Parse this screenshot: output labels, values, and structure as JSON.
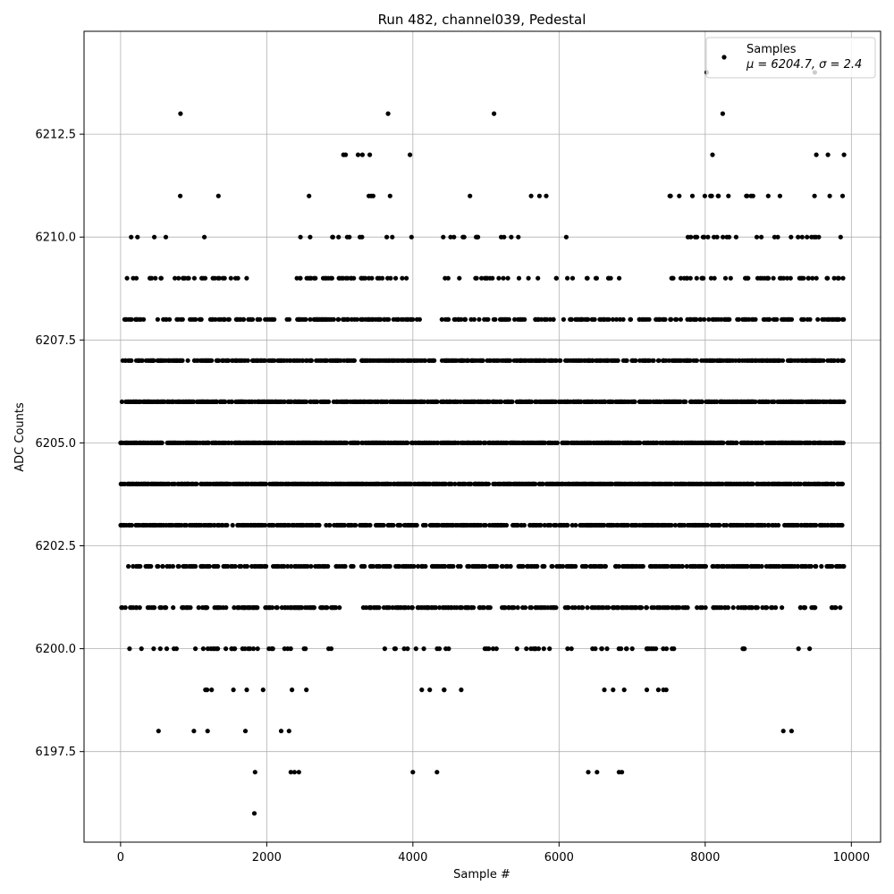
{
  "chart_data": {
    "type": "scatter",
    "title": "Run 482, channel039, Pedestal",
    "xlabel": "Sample #",
    "ylabel": "ADC Counts",
    "xlim": [
      -500,
      10400
    ],
    "ylim": [
      6195.3,
      6215.0
    ],
    "grid": true,
    "legend_position": "top-right",
    "marker_color": "#000000",
    "x_ticks": [
      {
        "value": 0,
        "label": "0"
      },
      {
        "value": 2000,
        "label": "2000"
      },
      {
        "value": 4000,
        "label": "4000"
      },
      {
        "value": 6000,
        "label": "6000"
      },
      {
        "value": 8000,
        "label": "8000"
      },
      {
        "value": 10000,
        "label": "10000"
      }
    ],
    "y_ticks": [
      {
        "value": 6197.5,
        "label": "6197.5"
      },
      {
        "value": 6200.0,
        "label": "6200.0"
      },
      {
        "value": 6202.5,
        "label": "6202.5"
      },
      {
        "value": 6205.0,
        "label": "6205.0"
      },
      {
        "value": 6207.5,
        "label": "6207.5"
      },
      {
        "value": 6210.0,
        "label": "6210.0"
      },
      {
        "value": 6212.5,
        "label": "6212.5"
      }
    ],
    "series": [
      {
        "name": "Samples",
        "stats_label": "μ = 6204.7, σ = 2.4",
        "sample_count": 10000,
        "x_range": [
          0,
          9900
        ],
        "level_profiles": [
          {
            "y": 6204,
            "segments": [
              [
                0,
                9900,
                0.55
              ]
            ]
          },
          {
            "y": 6205,
            "segments": [
              [
                0,
                9900,
                0.55
              ]
            ]
          },
          {
            "y": 6206,
            "segments": [
              [
                0,
                9900,
                0.5
              ]
            ]
          },
          {
            "y": 6203,
            "segments": [
              [
                0,
                9900,
                0.42
              ]
            ]
          },
          {
            "y": 6207,
            "segments": [
              [
                0,
                4300,
                0.35
              ],
              [
                4300,
                4400,
                0.05
              ],
              [
                4400,
                9900,
                0.4
              ]
            ]
          },
          {
            "y": 6202,
            "segments": [
              [
                100,
                9900,
                0.32
              ]
            ]
          },
          {
            "y": 6208,
            "segments": [
              [
                0,
                2000,
                0.18
              ],
              [
                2000,
                2400,
                0.12
              ],
              [
                2400,
                4100,
                0.3
              ],
              [
                4400,
                9900,
                0.25
              ]
            ]
          },
          {
            "y": 6201,
            "segments": [
              [
                0,
                3000,
                0.28
              ],
              [
                3300,
                9900,
                0.22
              ]
            ]
          },
          {
            "y": 6209,
            "segments": [
              [
                0,
                1800,
                0.1
              ],
              [
                2400,
                4000,
                0.2
              ],
              [
                4400,
                7000,
                0.08
              ],
              [
                7400,
                9900,
                0.2
              ]
            ]
          },
          {
            "y": 6200,
            "segments": [
              [
                100,
                3000,
                0.09
              ],
              [
                3500,
                4500,
                0.12
              ],
              [
                4900,
                7800,
                0.06
              ],
              [
                8500,
                9500,
                0.05
              ]
            ]
          },
          {
            "y": 6210,
            "segments": [
              [
                0,
                1400,
                0.02
              ],
              [
                2400,
                4000,
                0.05
              ],
              [
                4400,
                6500,
                0.03
              ],
              [
                7700,
                9900,
                0.08
              ]
            ]
          },
          {
            "y": 6211,
            "segments": [
              [
                0,
                1400,
                0.01
              ],
              [
                2400,
                3700,
                0.03
              ],
              [
                4500,
                6300,
                0.01
              ],
              [
                7500,
                9900,
                0.04
              ]
            ]
          },
          {
            "y": 6199,
            "segments": [
              [
                400,
                2800,
                0.02
              ],
              [
                3800,
                4700,
                0.03
              ],
              [
                5700,
                7500,
                0.03
              ],
              [
                8900,
                9300,
                0.005
              ]
            ]
          },
          {
            "y": 6198,
            "segments": [
              [
                400,
                2400,
                0.015
              ],
              [
                4000,
                4300,
                0.01
              ],
              [
                5700,
                7500,
                0.012
              ],
              [
                8500,
                9300,
                0.004
              ]
            ]
          }
        ],
        "sparse_points": [
          [
            1830,
            6196
          ],
          [
            1840,
            6197
          ],
          [
            2330,
            6197
          ],
          [
            2380,
            6197
          ],
          [
            2440,
            6197
          ],
          [
            4000,
            6197
          ],
          [
            4330,
            6197
          ],
          [
            6400,
            6197
          ],
          [
            6520,
            6197
          ],
          [
            6820,
            6197
          ],
          [
            6860,
            6197
          ],
          [
            820,
            6213
          ],
          [
            3660,
            6213
          ],
          [
            5110,
            6213
          ],
          [
            8240,
            6213
          ],
          [
            3050,
            6212
          ],
          [
            3080,
            6212
          ],
          [
            3250,
            6212
          ],
          [
            3310,
            6212
          ],
          [
            3410,
            6212
          ],
          [
            3960,
            6212
          ],
          [
            8100,
            6212
          ],
          [
            9520,
            6212
          ],
          [
            9680,
            6212
          ],
          [
            9900,
            6212
          ],
          [
            8020,
            6214
          ],
          [
            9500,
            6214
          ]
        ]
      }
    ]
  }
}
